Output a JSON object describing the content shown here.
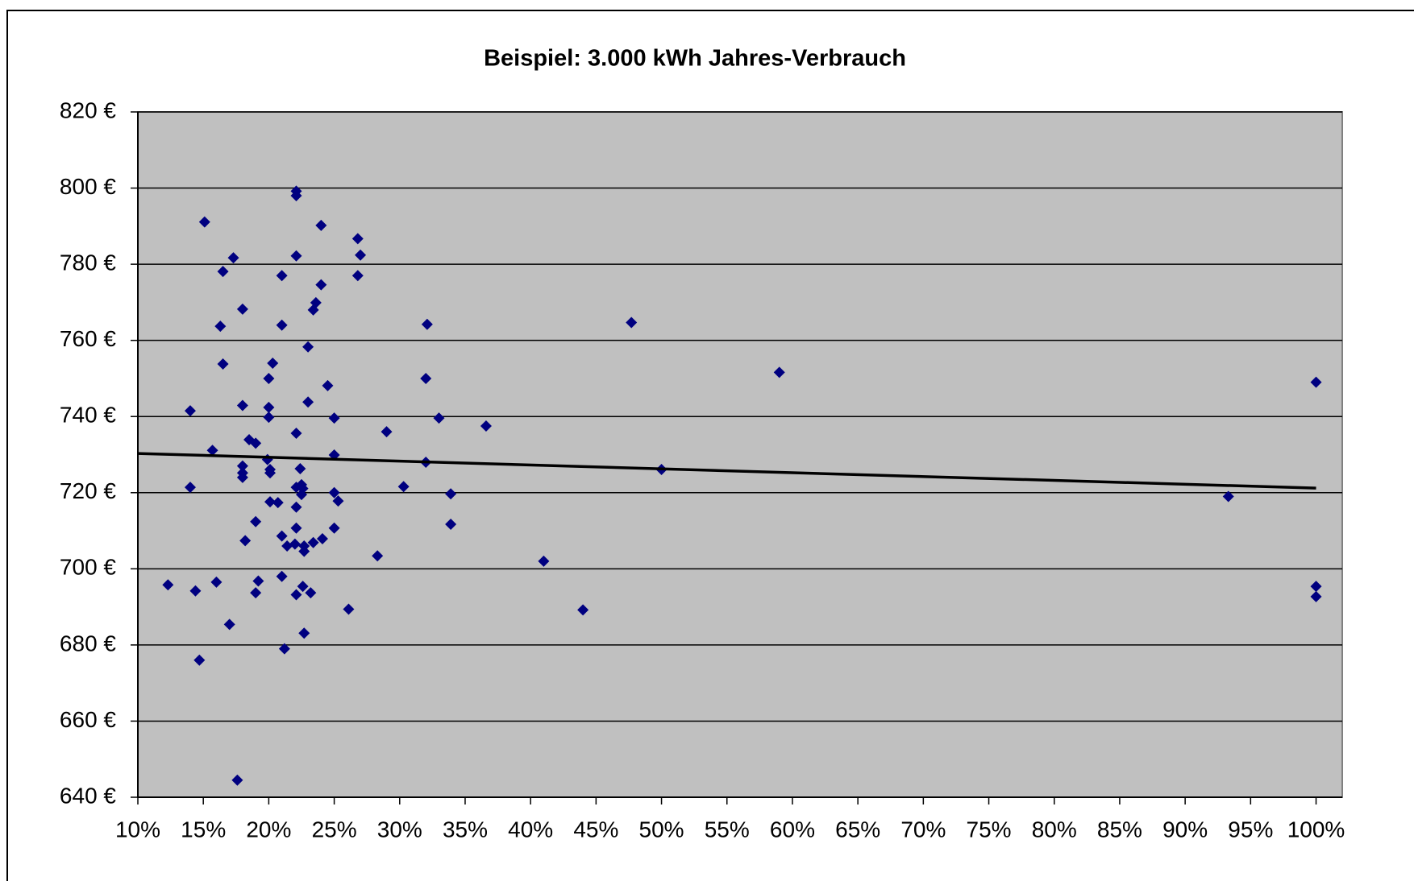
{
  "chart_data": {
    "type": "scatter",
    "title": "Beispiel: 3.000 kWh Jahres-Verbrauch",
    "x": [
      12.3,
      14.0,
      14.0,
      14.4,
      14.7,
      15.1,
      15.7,
      16.0,
      16.3,
      16.5,
      16.5,
      17.0,
      17.3,
      17.6,
      18.0,
      18.0,
      18.0,
      18.0,
      18.0,
      18.2,
      18.5,
      19.0,
      19.0,
      19.0,
      19.2,
      19.9,
      20.0,
      20.0,
      20.0,
      20.1,
      20.1,
      20.1,
      20.3,
      20.7,
      21.0,
      21.0,
      21.0,
      21.0,
      21.2,
      21.4,
      22.1,
      22.1,
      22.1,
      22.1,
      22.1,
      22.1,
      22.1,
      22.0,
      22.1,
      22.4,
      22.5,
      22.5,
      22.6,
      22.7,
      22.7,
      22.6,
      22.7,
      23.0,
      23.0,
      23.2,
      23.4,
      23.4,
      23.6,
      24.0,
      24.0,
      24.1,
      24.5,
      25.0,
      25.0,
      25.0,
      25.0,
      25.3,
      26.1,
      26.8,
      27.0,
      26.8,
      28.3,
      29.0,
      30.3,
      32.0,
      32.1,
      32.0,
      33.0,
      33.9,
      33.9,
      36.6,
      41.0,
      44.0,
      47.7,
      50.0,
      59.0,
      93.3,
      100.0,
      100.0,
      100.0
    ],
    "values": [
      695.8,
      741.5,
      721.4,
      694.2,
      676.0,
      791.1,
      731.1,
      696.5,
      763.7,
      753.8,
      778.1,
      685.4,
      781.7,
      644.5,
      768.2,
      742.9,
      727.0,
      725.2,
      724.0,
      707.4,
      733.9,
      733.0,
      712.4,
      693.7,
      696.8,
      728.7,
      750.0,
      742.4,
      739.8,
      726.1,
      725.2,
      717.6,
      754.0,
      717.4,
      777.0,
      764.0,
      708.6,
      698.0,
      679.0,
      706.0,
      799.2,
      798.0,
      782.2,
      735.6,
      721.4,
      716.2,
      710.7,
      706.5,
      693.2,
      726.3,
      722.1,
      719.5,
      721.1,
      706.0,
      704.6,
      695.4,
      683.1,
      758.3,
      743.8,
      693.7,
      768.0,
      706.9,
      769.9,
      790.2,
      774.6,
      707.9,
      748.1,
      739.6,
      729.9,
      720.0,
      710.7,
      717.8,
      689.4,
      786.7,
      782.4,
      777.0,
      703.4,
      736.0,
      721.6,
      750.0,
      764.2,
      728.0,
      739.6,
      719.7,
      711.7,
      737.5,
      702.0,
      689.2,
      764.7,
      726.1,
      751.6,
      719.0,
      749.0,
      695.4,
      692.7
    ],
    "color": "#000080",
    "trendline": {
      "x": [
        10,
        100
      ],
      "values": [
        730.3,
        721.2
      ],
      "color": "#000000"
    },
    "xlim": [
      10,
      102
    ],
    "xticks": [
      {
        "value": 10,
        "label": "10%"
      },
      {
        "value": 15,
        "label": "15%"
      },
      {
        "value": 20,
        "label": "20%"
      },
      {
        "value": 25,
        "label": "25%"
      },
      {
        "value": 30,
        "label": "30%"
      },
      {
        "value": 35,
        "label": "35%"
      },
      {
        "value": 40,
        "label": "40%"
      },
      {
        "value": 45,
        "label": "45%"
      },
      {
        "value": 50,
        "label": "50%"
      },
      {
        "value": 55,
        "label": "55%"
      },
      {
        "value": 60,
        "label": "60%"
      },
      {
        "value": 65,
        "label": "65%"
      },
      {
        "value": 70,
        "label": "70%"
      },
      {
        "value": 75,
        "label": "75%"
      },
      {
        "value": 80,
        "label": "80%"
      },
      {
        "value": 85,
        "label": "85%"
      },
      {
        "value": 90,
        "label": "90%"
      },
      {
        "value": 95,
        "label": "95%"
      },
      {
        "value": 100,
        "label": "100%"
      }
    ],
    "ylim": [
      640,
      820
    ],
    "yticks": [
      {
        "value": 640,
        "label": "640 €"
      },
      {
        "value": 660,
        "label": "660 €"
      },
      {
        "value": 680,
        "label": "680 €"
      },
      {
        "value": 700,
        "label": "700 €"
      },
      {
        "value": 720,
        "label": "720 €"
      },
      {
        "value": 740,
        "label": "740 €"
      },
      {
        "value": 760,
        "label": "760 €"
      },
      {
        "value": 780,
        "label": "780 €"
      },
      {
        "value": 800,
        "label": "800 €"
      },
      {
        "value": 820,
        "label": "820 €"
      }
    ],
    "grid": true
  }
}
